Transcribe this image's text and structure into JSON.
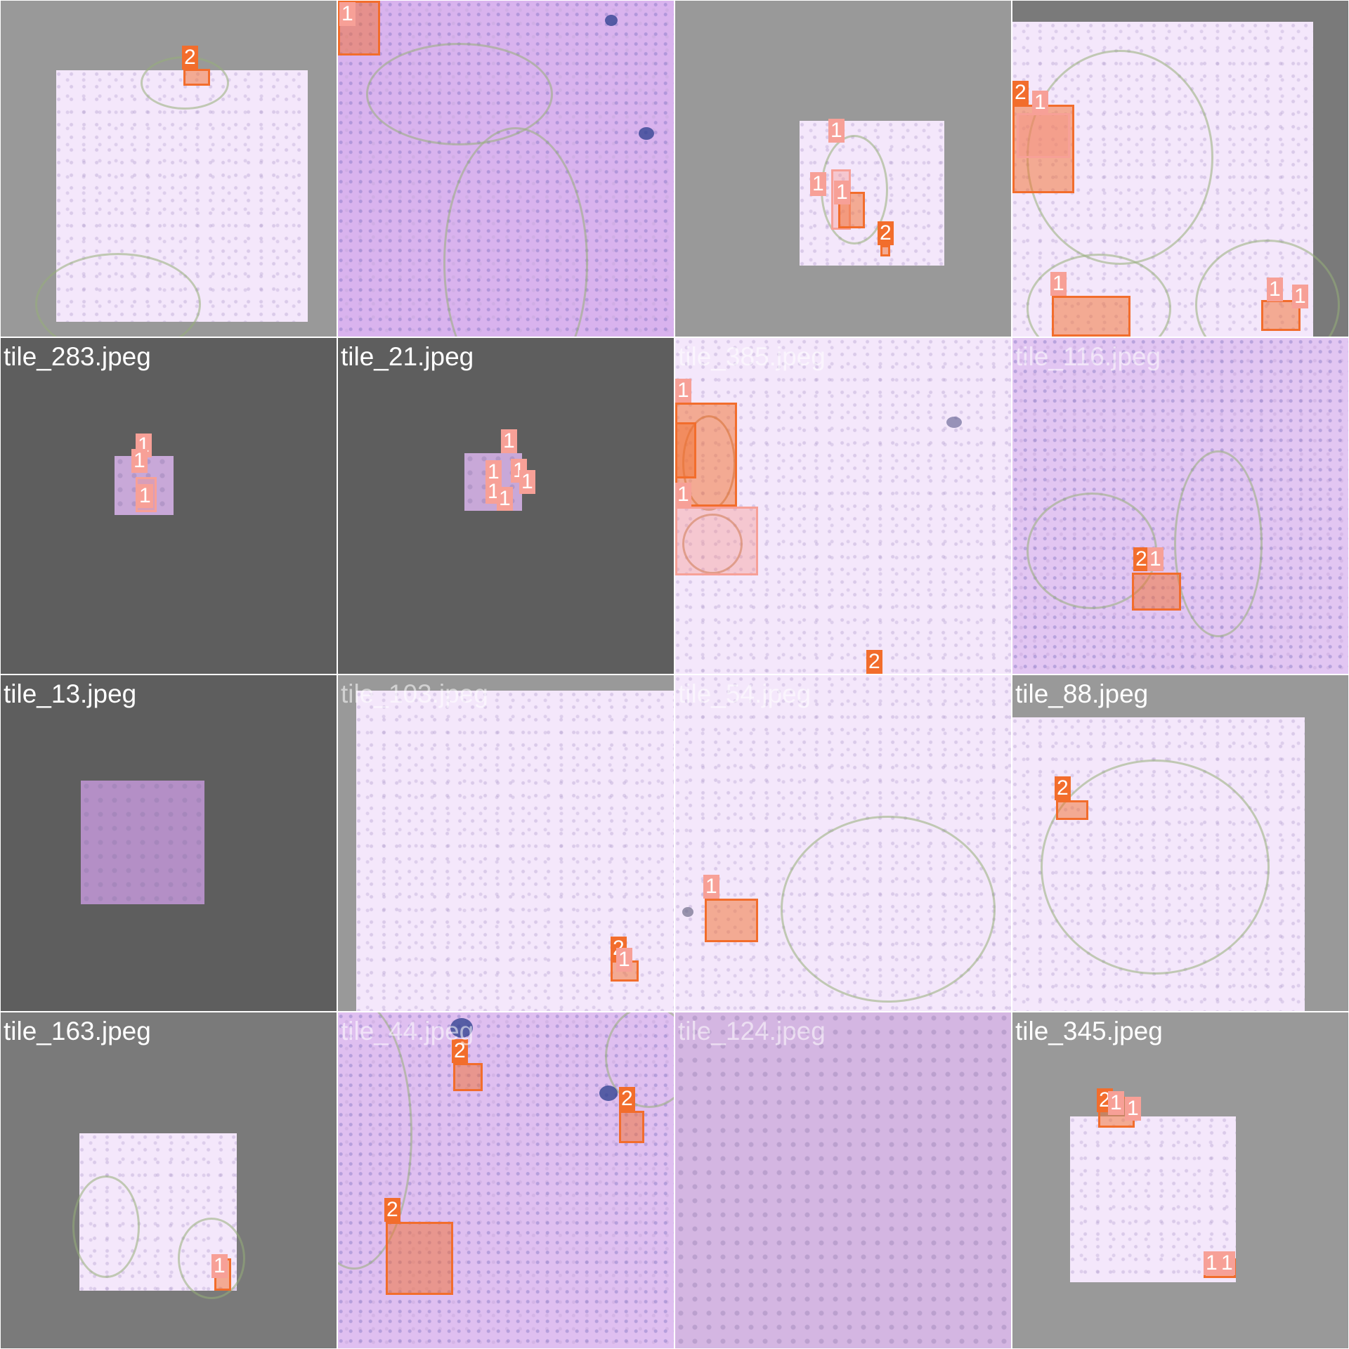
{
  "palette": {
    "class_1": "#f7a097",
    "class_2": "#f26d2c",
    "pad_light": "#999999",
    "pad_dark": "#5e5e5e"
  },
  "tiles": [
    {
      "label": ""
    },
    {
      "label": ""
    },
    {
      "label": ""
    },
    {
      "label": ""
    },
    {
      "label": "tile_283.jpeg"
    },
    {
      "label": "tile_21.jpeg"
    },
    {
      "label": "tile_385.jpeg"
    },
    {
      "label": "tile_116.jpeg"
    },
    {
      "label": "tile_13.jpeg"
    },
    {
      "label": "tile_103.jpeg"
    },
    {
      "label": "tile_54.jpeg"
    },
    {
      "label": "tile_88.jpeg"
    },
    {
      "label": "tile_163.jpeg"
    },
    {
      "label": "tile_44.jpeg"
    },
    {
      "label": "tile_124.jpeg"
    },
    {
      "label": "tile_345.jpeg"
    }
  ],
  "classes": {
    "one": "1",
    "two": "2"
  }
}
